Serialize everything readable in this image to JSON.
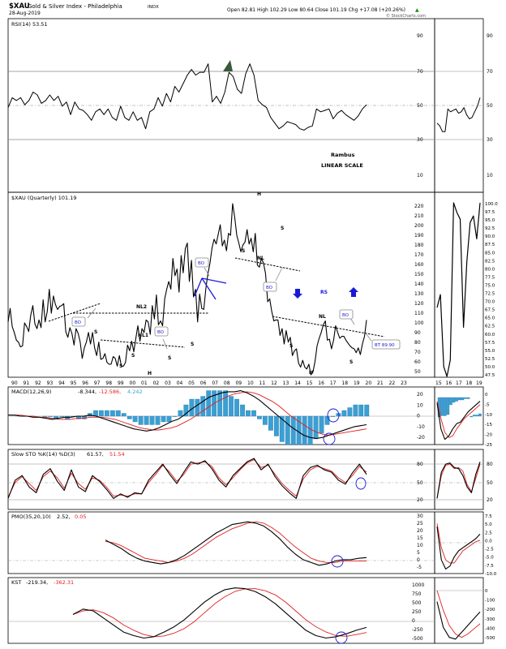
{
  "header": {
    "symbol": "$XAU",
    "name": "Gold & Silver Index - Philadelphia",
    "exchange": "INDX",
    "date": "28-Aug-2019",
    "ohlc": "Open 82.81  High 102.29  Low 80.64  Close 101.19  Chg +17.08 (+20.26%)",
    "watermark": "© StockCharts.com",
    "up_arrow": "▲"
  },
  "colors": {
    "price": "#000000",
    "signal": "#e02020",
    "histogram": "#3b9fd4",
    "annotation": "#1a1ad6",
    "neutral_line": "#999999",
    "rsi_overbought_fill": "#3a5a3a"
  },
  "rsi": {
    "label": "RSI(14) 53.51",
    "ticks": [
      "90",
      "70",
      "50",
      "30",
      "10"
    ],
    "note1": "Rambus",
    "note2": "LINEAR SCALE"
  },
  "price_panel": {
    "label": "$XAU (Quarterly) 101.19",
    "ticks": [
      "220",
      "210",
      "200",
      "190",
      "180",
      "170",
      "160",
      "150",
      "140",
      "130",
      "120",
      "110",
      "100",
      "90",
      "80",
      "70",
      "60",
      "50"
    ],
    "mini_ticks": [
      "100.0",
      "97.5",
      "95.0",
      "92.5",
      "90.0",
      "87.5",
      "85.0",
      "82.5",
      "80.0",
      "77.5",
      "75.0",
      "72.5",
      "70.0",
      "67.5",
      "65.0",
      "62.5",
      "60.0",
      "57.5",
      "55.0",
      "52.5",
      "50.0",
      "47.5"
    ],
    "x_labels": [
      "90",
      "91",
      "92",
      "93",
      "94",
      "95",
      "96",
      "97",
      "98",
      "99",
      "00",
      "01",
      "02",
      "03",
      "04",
      "05",
      "06",
      "07",
      "08",
      "09",
      "10",
      "11",
      "12",
      "13",
      "14",
      "15",
      "16",
      "17",
      "18",
      "19",
      "20",
      "21",
      "22",
      "23"
    ],
    "mini_x_labels": [
      "15",
      "16",
      "17",
      "18",
      "19"
    ],
    "annotations": {
      "bo1": "BO",
      "bo2": "BO",
      "bo3": "BO",
      "bo4": "BO",
      "bo5": "BO",
      "bt": "BT 89.90",
      "nl2": "NL2",
      "nl1": "NL1",
      "nl": "NL",
      "nl_right": "NL",
      "s1": "S",
      "s2": "S",
      "s3": "S",
      "h1": "H",
      "s4": "S",
      "s5": "S",
      "h_top": "H",
      "s_top_l": "S",
      "s_top_r": "S",
      "s6": "S",
      "h2": "H",
      "s7": "S",
      "rs": "RS"
    }
  },
  "macd": {
    "label": "MACD(12,26,9)",
    "v1": "-8.344,",
    "v2": "-12.586,",
    "v3": "4.242",
    "ticks": [
      "20",
      "10",
      "0",
      "-10",
      "-20"
    ],
    "mini_ticks": [
      "0",
      "-5",
      "-10",
      "-15",
      "-20",
      "-25"
    ]
  },
  "sto": {
    "label": "Slow STO %K(14) %D(3)",
    "v1": "61.57,",
    "v2": "51.54",
    "ticks": [
      "80",
      "50",
      "20"
    ]
  },
  "pmo": {
    "label": "PMO(35,20,10)",
    "v1": "2.52,",
    "v2": "0.05",
    "ticks": [
      "30",
      "25",
      "20",
      "15",
      "10",
      "5",
      "0",
      "-5"
    ],
    "mini_ticks": [
      "7.5",
      "5.0",
      "2.5",
      "0.0",
      "-2.5",
      "-5.0",
      "-7.5",
      "-10.0"
    ]
  },
  "kst": {
    "label": "KST",
    "v1": "-219.34,",
    "v2": "-362.31",
    "ticks": [
      "1000",
      "750",
      "500",
      "250",
      "0",
      "-250",
      "-500"
    ],
    "mini_ticks": [
      "0",
      "-100",
      "-200",
      "-300",
      "-400",
      "-500"
    ]
  },
  "chart_data": [
    {
      "type": "line",
      "title": "$XAU (Quarterly)",
      "subtitle": "Gold & Silver Index - Philadelphia",
      "x_start": 1990,
      "x_step": 0.25,
      "ylim": [
        44,
        222
      ],
      "series": [
        {
          "name": "$XAU",
          "values": [
            99,
            113,
            94,
            88,
            80,
            78,
            73,
            74,
            98,
            94,
            89,
            106,
            116,
            97,
            92,
            101,
            93,
            122,
            99,
            110,
            133,
            108,
            126,
            117,
            112,
            115,
            116,
            118,
            89,
            83,
            93,
            87,
            75,
            92,
            87,
            78,
            61,
            72,
            78,
            88,
            76,
            88,
            72,
            64,
            78,
            60,
            61,
            66,
            57,
            55,
            55,
            63,
            61,
            53,
            64,
            53,
            53,
            57,
            75,
            69,
            79,
            68,
            82,
            95,
            79,
            92,
            88,
            101,
            99,
            86,
            116,
            102,
            127,
            96,
            100,
            95,
            123,
            133,
            141,
            133,
            165,
            147,
            154,
            130,
            168,
            150,
            175,
            181,
            141,
            163,
            125,
            133,
            99,
            128,
            113,
            112,
            134,
            149,
            160,
            176,
            185,
            180,
            190,
            200,
            178,
            184,
            173,
            191,
            189,
            222,
            208,
            189,
            181,
            172,
            179,
            182,
            195,
            180,
            186,
            172,
            191,
            158,
            156,
            165,
            160,
            149,
            120,
            123,
            110,
            100,
            101,
            101,
            85,
            92,
            76,
            90,
            78,
            83,
            64,
            69,
            71,
            56,
            52,
            59,
            52,
            50,
            55,
            44,
            47,
            58,
            74,
            82,
            88,
            96,
            100,
            80,
            81,
            71,
            80,
            95,
            88,
            82,
            84,
            84,
            80,
            77,
            74,
            72,
            71,
            67,
            72,
            65,
            76,
            84,
            101
          ]
        }
      ],
      "annotations": {
        "BT": 89.9
      }
    },
    {
      "type": "line",
      "title": "RSI(14)",
      "ylim": [
        0,
        100
      ],
      "series": [
        {
          "name": "RSI(14)",
          "values": [
            47,
            54,
            52,
            54,
            49,
            52,
            58,
            56,
            50,
            52,
            56,
            52,
            55,
            48,
            51,
            42,
            51,
            46,
            45,
            42,
            38,
            44,
            46,
            42,
            46,
            40,
            38,
            48,
            40,
            38,
            44,
            38,
            40,
            32,
            44,
            46,
            54,
            48,
            57,
            51,
            62,
            58,
            64,
            70,
            74,
            70,
            72,
            72,
            78,
            51,
            55,
            50,
            58,
            72,
            69,
            60,
            57,
            71,
            78,
            70,
            52,
            49,
            47,
            40,
            36,
            32,
            34,
            37,
            36,
            35,
            32,
            31,
            33,
            34,
            46,
            44,
            45,
            46,
            39,
            43,
            45,
            42,
            40,
            38,
            41,
            46,
            49,
            54
          ]
        }
      ]
    },
    {
      "type": "line",
      "title": "MACD(12,26,9)",
      "ylim": [
        -26,
        26
      ],
      "series": [
        {
          "name": "MACD",
          "values": [
            1,
            1,
            0,
            0,
            -1,
            -1,
            -2,
            -3,
            -2,
            -1,
            -1,
            0,
            0,
            1,
            0,
            -2,
            -4,
            -6,
            -8,
            -10,
            -12,
            -13,
            -14,
            -13,
            -11,
            -8,
            -5,
            -3,
            1,
            6,
            10,
            14,
            18,
            20,
            22,
            23,
            23,
            24,
            22,
            19,
            15,
            10,
            5,
            0,
            -5,
            -10,
            -14,
            -18,
            -20,
            -21,
            -20,
            -18,
            -16,
            -14,
            -12,
            -10,
            -9,
            -8
          ]
        },
        {
          "name": "Signal",
          "values": [
            1,
            1,
            1,
            0,
            0,
            -1,
            -1,
            -2,
            -3,
            -3,
            -3,
            -2,
            -2,
            -1,
            -1,
            -1,
            -2,
            -3,
            -5,
            -7,
            -9,
            -11,
            -12,
            -13,
            -13,
            -12,
            -11,
            -9,
            -6,
            -3,
            1,
            5,
            9,
            13,
            16,
            19,
            21,
            22,
            23,
            22,
            20,
            17,
            14,
            10,
            5,
            0,
            -4,
            -8,
            -12,
            -15,
            -17,
            -18,
            -17,
            -16,
            -15,
            -14,
            -13,
            -12
          ]
        }
      ]
    },
    {
      "type": "line",
      "title": "Slow STO %K(14) %D(3)",
      "ylim": [
        0,
        100
      ],
      "series": [
        {
          "name": "%K",
          "values": [
            20,
            52,
            60,
            40,
            30,
            62,
            72,
            50,
            34,
            70,
            40,
            32,
            60,
            50,
            36,
            20,
            28,
            22,
            30,
            28,
            52,
            66,
            80,
            62,
            46,
            66,
            84,
            80,
            86,
            72,
            52,
            40,
            60,
            72,
            84,
            90,
            70,
            80,
            58,
            42,
            30,
            20,
            60,
            74,
            78,
            70,
            66,
            52,
            45,
            65,
            80,
            62
          ]
        },
        {
          "name": "%D",
          "values": [
            22,
            48,
            58,
            46,
            34,
            58,
            68,
            56,
            38,
            64,
            46,
            36,
            56,
            52,
            40,
            24,
            26,
            24,
            28,
            28,
            48,
            62,
            78,
            66,
            50,
            62,
            80,
            82,
            84,
            76,
            56,
            44,
            56,
            70,
            82,
            88,
            74,
            78,
            62,
            46,
            34,
            24,
            54,
            70,
            76,
            72,
            68,
            56,
            48,
            60,
            76,
            66
          ]
        }
      ]
    },
    {
      "type": "line",
      "title": "PMO(35,20,10)",
      "ylim": [
        -6,
        31
      ],
      "series": [
        {
          "name": "PMO",
          "values": [
            15,
            12,
            9,
            5,
            2,
            0,
            -1,
            -2,
            -1,
            1,
            4,
            8,
            12,
            16,
            20,
            23,
            26,
            27,
            28,
            27,
            25,
            21,
            16,
            10,
            5,
            1,
            -1,
            -3,
            -2,
            0,
            1,
            1,
            2,
            2.5
          ]
        },
        {
          "name": "Signal",
          "values": [
            14,
            13,
            11,
            8,
            5,
            2,
            1,
            0,
            -1,
            0,
            2,
            5,
            9,
            13,
            17,
            20,
            23,
            25,
            27,
            28,
            27,
            24,
            20,
            15,
            10,
            6,
            2,
            0,
            -1,
            -1,
            0,
            0,
            0,
            0.05
          ]
        }
      ]
    },
    {
      "type": "line",
      "title": "KST",
      "ylim": [
        -600,
        1100
      ],
      "series": [
        {
          "name": "KST",
          "values": [
            150,
            300,
            250,
            50,
            -150,
            -350,
            -450,
            -520,
            -480,
            -350,
            -200,
            0,
            250,
            500,
            700,
            850,
            900,
            880,
            800,
            650,
            450,
            200,
            -50,
            -300,
            -450,
            -520,
            -480,
            -400,
            -300,
            -219.34
          ]
        },
        {
          "name": "Signal",
          "values": [
            150,
            250,
            280,
            200,
            50,
            -150,
            -300,
            -420,
            -480,
            -460,
            -380,
            -250,
            -50,
            200,
            450,
            650,
            800,
            870,
            880,
            820,
            700,
            500,
            250,
            0,
            -200,
            -350,
            -450,
            -470,
            -420,
            -362.31
          ]
        }
      ]
    }
  ]
}
